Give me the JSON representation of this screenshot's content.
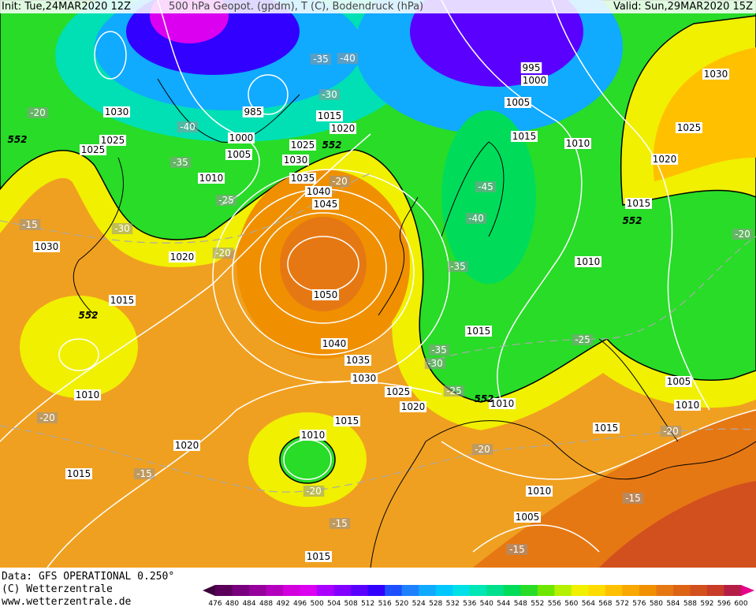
{
  "header": {
    "init": "Init: Tue,24MAR2020 12Z",
    "title": "500 hPa Geopot. (gpdm), T (C), Bodendruck (hPa)",
    "valid": "Valid: Sun,29MAR2020 15Z"
  },
  "footer": {
    "data": "Data: GFS OPERATIONAL 0.250°",
    "copyright": "(C) Wetterzentrale",
    "url": "www.wetterzentrale.de"
  },
  "colorbar": {
    "labels": [
      "476",
      "480",
      "484",
      "488",
      "492",
      "496",
      "500",
      "504",
      "508",
      "512",
      "516",
      "520",
      "524",
      "528",
      "532",
      "536",
      "540",
      "544",
      "548",
      "552",
      "556",
      "560",
      "564",
      "568",
      "572",
      "576",
      "580",
      "584",
      "588",
      "592",
      "596",
      "600"
    ],
    "colors": [
      "#3c003c",
      "#5a005a",
      "#78007d",
      "#96009b",
      "#b400be",
      "#d200dc",
      "#dc00f0",
      "#aa00ff",
      "#8200ff",
      "#5a00ff",
      "#3200ff",
      "#1e50ff",
      "#1e82ff",
      "#10aaff",
      "#00c8ff",
      "#00e0e6",
      "#00e6b4",
      "#00e08c",
      "#00dc5a",
      "#28dc28",
      "#6ee600",
      "#b4f000",
      "#f0f000",
      "#ffdc00",
      "#ffc000",
      "#f8a800",
      "#f09000",
      "#e67814",
      "#dc6414",
      "#d2501e",
      "#c83c28",
      "#b41e46",
      "#e6008c"
    ]
  },
  "map": {
    "pressure_labels": [
      "1030",
      "1025",
      "1025",
      "1000",
      "1005",
      "985",
      "1015",
      "1020",
      "1025",
      "1030",
      "1035",
      "1040",
      "1045",
      "1010",
      "995",
      "1000",
      "1005",
      "1015",
      "1010",
      "1030",
      "1025",
      "1020",
      "1015",
      "1010",
      "1030",
      "1020",
      "1015",
      "1050",
      "1040",
      "1035",
      "1030",
      "1025",
      "1020",
      "1010",
      "1015",
      "1015",
      "1010",
      "1020",
      "1015",
      "1010",
      "1015",
      "1005",
      "1010",
      "1010",
      "1005",
      "1015"
    ],
    "temperature_labels": [
      "-20",
      "-15",
      "-30",
      "-40",
      "-35",
      "-25",
      "-20",
      "-35",
      "-40",
      "-30",
      "-20",
      "-45",
      "-40",
      "-35",
      "-35",
      "-30",
      "-25",
      "-25",
      "-20",
      "-20",
      "-15",
      "-20",
      "-20",
      "-20",
      "-15",
      "-15",
      "-15"
    ],
    "height_labels": [
      "552",
      "552",
      "552",
      "552",
      "552"
    ]
  }
}
